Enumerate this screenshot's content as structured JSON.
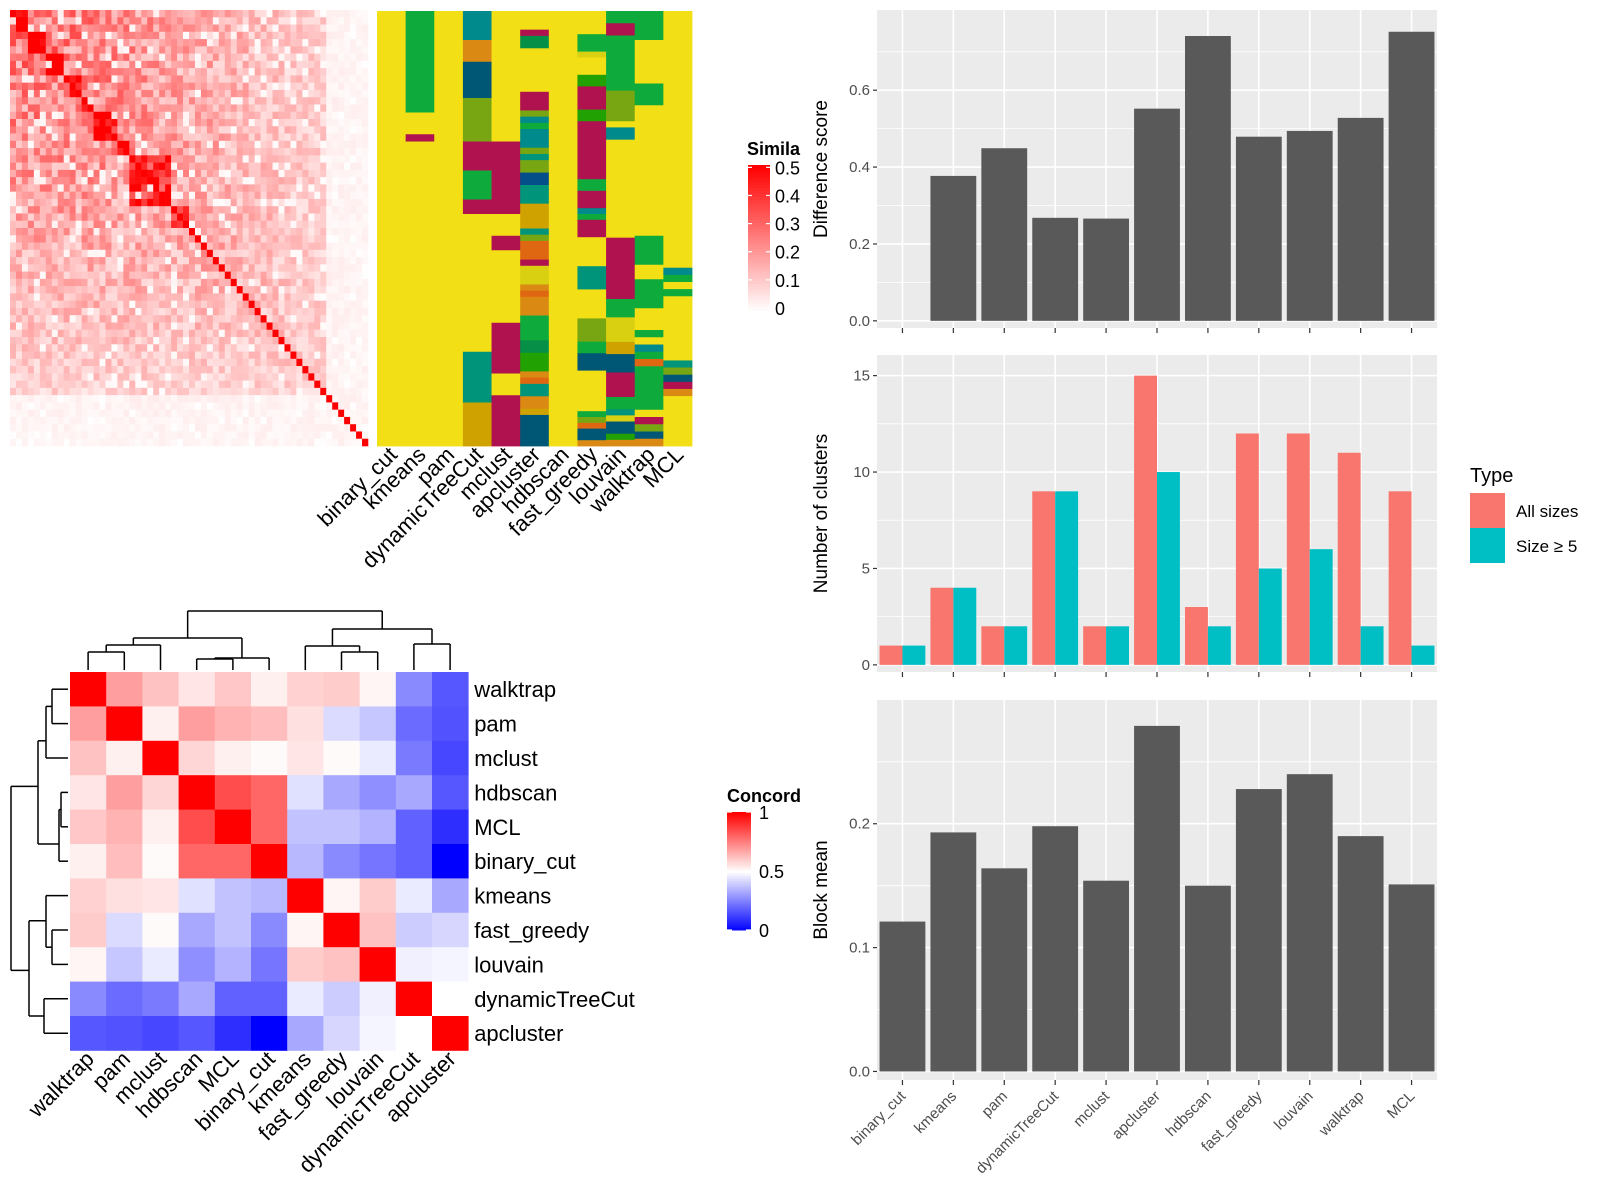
{
  "methods_order": [
    "binary_cut",
    "kmeans",
    "pam",
    "dynamicTreeCut",
    "mclust",
    "apcluster",
    "hdbscan",
    "fast_greedy",
    "louvain",
    "walktrap",
    "MCL"
  ],
  "chart_data": [
    {
      "id": "similarity-heatmap",
      "type": "heatmap",
      "title": "",
      "legend": {
        "title": "Similarity",
        "title_visible": "Simila",
        "ticks": [
          "0",
          "0.1",
          "0.2",
          "0.3",
          "0.4",
          "0.5"
        ],
        "range": [
          0,
          0.5
        ],
        "colors": [
          "#FFFFFF",
          "#FF0000"
        ]
      },
      "note": "Approximately 60x60 gene-set similarity matrix ordered by binary_cut clusters; strong diagonal blocks in upper-left",
      "size": 60,
      "blocks": [
        [
          0,
          3
        ],
        [
          3,
          6
        ],
        [
          6,
          9
        ],
        [
          9,
          12
        ],
        [
          12,
          14
        ],
        [
          14,
          18
        ],
        [
          18,
          20
        ],
        [
          20,
          27
        ],
        [
          27,
          30
        ],
        [
          30,
          36
        ],
        [
          36,
          40
        ],
        [
          40,
          60
        ]
      ]
    },
    {
      "id": "cluster-assignment-heatmap",
      "type": "heatmap",
      "columns": [
        "binary_cut",
        "kmeans",
        "pam",
        "dynamicTreeCut",
        "mclust",
        "apcluster",
        "hdbscan",
        "fast_greedy",
        "louvain",
        "walktrap",
        "MCL"
      ],
      "note": "Categorical cluster membership per gene set (rows) for each method (columns); yellow is the largest/background cluster",
      "palette": {
        "yellow": "#F2DF15",
        "green": "#0FAA3C",
        "crimson": "#B0124F",
        "teal": "#008A8C",
        "orange": "#DA8A13",
        "navy": "#005775",
        "olive": "#78A612",
        "seagreen": "#00957A",
        "gold": "#CFA200",
        "dkgreen": "#068F47",
        "lime": "#D8D010",
        "red_orange": "#E06712",
        "green2": "#22A102",
        "blue": "#044E8A"
      },
      "segments": [
        [
          [
            "yellow",
            60
          ]
        ],
        [
          [
            "green",
            14
          ],
          [
            "yellow",
            3
          ],
          [
            "crimson",
            1
          ],
          [
            "yellow",
            42
          ]
        ],
        [
          [
            "yellow",
            60
          ]
        ],
        [
          [
            "teal",
            4
          ],
          [
            "orange",
            3
          ],
          [
            "navy",
            5
          ],
          [
            "olive",
            6
          ],
          [
            "crimson",
            4
          ],
          [
            "green",
            4
          ],
          [
            "crimson",
            2
          ],
          [
            "yellow",
            19
          ],
          [
            "seagreen",
            7
          ],
          [
            "gold",
            6
          ]
        ],
        [
          [
            "yellow",
            18
          ],
          [
            "crimson",
            10
          ],
          [
            "yellow",
            3
          ],
          [
            "crimson",
            2
          ],
          [
            "yellow",
            10
          ],
          [
            "crimson",
            7
          ],
          [
            "yellow",
            3
          ],
          [
            "crimson",
            7
          ]
        ],
        [
          [
            "yellow",
            3
          ],
          [
            "crimson",
            1
          ],
          [
            "dkgreen",
            2
          ],
          [
            "yellow",
            7
          ],
          [
            "crimson",
            3
          ],
          [
            "olive",
            1
          ],
          [
            "teal",
            1
          ],
          [
            "green",
            1
          ],
          [
            "teal",
            3
          ],
          [
            "olive",
            1
          ],
          [
            "seagreen",
            1
          ],
          [
            "olive",
            2
          ],
          [
            "blue",
            2
          ],
          [
            "seagreen",
            3
          ],
          [
            "gold",
            4
          ],
          [
            "seagreen",
            1
          ],
          [
            "olive",
            1
          ],
          [
            "red_orange",
            3
          ],
          [
            "crimson",
            1
          ],
          [
            "lime",
            3
          ],
          [
            "orange",
            1
          ],
          [
            "red_orange",
            1
          ],
          [
            "orange",
            3
          ],
          [
            "green",
            4
          ],
          [
            "dkgreen",
            2
          ],
          [
            "green2",
            3
          ],
          [
            "orange",
            1
          ],
          [
            "red_orange",
            1
          ],
          [
            "seagreen",
            2
          ],
          [
            "orange",
            2
          ],
          [
            "gold",
            1
          ],
          [
            "navy",
            5
          ]
        ],
        [
          [
            "yellow",
            60
          ]
        ],
        [
          [
            "yellow",
            4
          ],
          [
            "green",
            3
          ],
          [
            "lime",
            1
          ],
          [
            "yellow",
            3
          ],
          [
            "green2",
            2
          ],
          [
            "crimson",
            4
          ],
          [
            "green2",
            2
          ],
          [
            "crimson",
            10
          ],
          [
            "green",
            2
          ],
          [
            "crimson",
            3
          ],
          [
            "teal",
            1
          ],
          [
            "green",
            1
          ],
          [
            "crimson",
            3
          ],
          [
            "yellow",
            5
          ],
          [
            "seagreen",
            4
          ],
          [
            "yellow",
            5
          ],
          [
            "olive",
            4
          ],
          [
            "green",
            2
          ],
          [
            "navy",
            3
          ],
          [
            "yellow",
            7
          ],
          [
            "green",
            1
          ],
          [
            "olive",
            1
          ],
          [
            "red_orange",
            1
          ],
          [
            "navy",
            2
          ],
          [
            "orange",
            1
          ]
        ],
        [
          [
            "green",
            2
          ],
          [
            "crimson",
            2
          ],
          [
            "green",
            9
          ],
          [
            "olive",
            5
          ],
          [
            "yellow",
            1
          ],
          [
            "teal",
            2
          ],
          [
            "yellow",
            16
          ],
          [
            "crimson",
            10
          ],
          [
            "green",
            3
          ],
          [
            "lime",
            4
          ],
          [
            "gold",
            2
          ],
          [
            "navy",
            3
          ],
          [
            "crimson",
            4
          ],
          [
            "green",
            2
          ],
          [
            "seagreen",
            1
          ],
          [
            "lime",
            1
          ],
          [
            "navy",
            2
          ],
          [
            "green2",
            1
          ],
          [
            "orange",
            1
          ]
        ],
        [
          [
            "green",
            4
          ],
          [
            "yellow",
            6
          ],
          [
            "green",
            3
          ],
          [
            "yellow",
            18
          ],
          [
            "green",
            4
          ],
          [
            "yellow",
            2
          ],
          [
            "green",
            4
          ],
          [
            "yellow",
            3
          ],
          [
            "green",
            1
          ],
          [
            "yellow",
            1
          ],
          [
            "teal",
            1
          ],
          [
            "green",
            1
          ],
          [
            "red_orange",
            1
          ],
          [
            "green",
            4
          ],
          [
            "green",
            2
          ],
          [
            "yellow",
            1
          ],
          [
            "crimson",
            1
          ],
          [
            "olive",
            1
          ],
          [
            "navy",
            1
          ],
          [
            "orange",
            1
          ]
        ],
        [
          [
            "yellow",
            36
          ],
          [
            "teal",
            1
          ],
          [
            "green",
            1
          ],
          [
            "yellow",
            1
          ],
          [
            "green",
            1
          ],
          [
            "yellow",
            9
          ],
          [
            "seagreen",
            1
          ],
          [
            "olive",
            1
          ],
          [
            "navy",
            1
          ],
          [
            "crimson",
            1
          ],
          [
            "orange",
            1
          ],
          [
            "yellow",
            7
          ]
        ]
      ]
    },
    {
      "id": "concordance-heatmap",
      "type": "heatmap",
      "rows": [
        "walktrap",
        "pam",
        "mclust",
        "hdbscan",
        "MCL",
        "binary_cut",
        "kmeans",
        "fast_greedy",
        "louvain",
        "dynamicTreeCut",
        "apcluster"
      ],
      "cols": [
        "walktrap",
        "pam",
        "mclust",
        "hdbscan",
        "MCL",
        "binary_cut",
        "kmeans",
        "fast_greedy",
        "louvain",
        "dynamicTreeCut",
        "apcluster"
      ],
      "values": [
        [
          1.0,
          0.69,
          0.62,
          0.55,
          0.61,
          0.53,
          0.59,
          0.6,
          0.52,
          0.27,
          0.17
        ],
        [
          0.69,
          1.0,
          0.53,
          0.69,
          0.65,
          0.63,
          0.56,
          0.43,
          0.39,
          0.21,
          0.16
        ],
        [
          0.62,
          0.53,
          1.0,
          0.58,
          0.53,
          0.51,
          0.55,
          0.51,
          0.46,
          0.24,
          0.14
        ],
        [
          0.55,
          0.69,
          0.58,
          1.0,
          0.85,
          0.8,
          0.44,
          0.33,
          0.28,
          0.33,
          0.17
        ],
        [
          0.61,
          0.65,
          0.53,
          0.85,
          1.0,
          0.8,
          0.38,
          0.38,
          0.35,
          0.19,
          0.09
        ],
        [
          0.53,
          0.63,
          0.51,
          0.8,
          0.8,
          1.0,
          0.36,
          0.27,
          0.23,
          0.19,
          0.0
        ],
        [
          0.59,
          0.56,
          0.55,
          0.44,
          0.38,
          0.36,
          1.0,
          0.52,
          0.6,
          0.46,
          0.33
        ],
        [
          0.6,
          0.43,
          0.51,
          0.33,
          0.38,
          0.27,
          0.52,
          1.0,
          0.62,
          0.4,
          0.42
        ],
        [
          0.52,
          0.39,
          0.46,
          0.28,
          0.35,
          0.23,
          0.6,
          0.62,
          1.0,
          0.47,
          0.48
        ],
        [
          0.27,
          0.21,
          0.24,
          0.33,
          0.19,
          0.19,
          0.46,
          0.4,
          0.47,
          1.0,
          0.5
        ],
        [
          0.17,
          0.16,
          0.14,
          0.17,
          0.09,
          0.0,
          0.33,
          0.42,
          0.48,
          0.5,
          1.0
        ]
      ],
      "legend": {
        "title": "Concordance",
        "title_visible": "Concord",
        "ticks": [
          "0",
          "0.5",
          "1"
        ],
        "range": [
          0,
          1
        ],
        "colors": [
          "#0000FF",
          "#FFFFFF",
          "#FF0000"
        ]
      },
      "dendrogram": {
        "merges_top_note": "((((walktrap,pam),mclust),((hdbscan,MCL),binary_cut)),((kmeans,(fast_greedy,louvain)),(dynamicTreeCut,apcluster)))"
      }
    },
    {
      "id": "difference-score-bar",
      "type": "bar",
      "categories": [
        "binary_cut",
        "kmeans",
        "pam",
        "dynamicTreeCut",
        "mclust",
        "apcluster",
        "hdbscan",
        "fast_greedy",
        "louvain",
        "walktrap",
        "MCL"
      ],
      "values": [
        0.0,
        0.377,
        0.449,
        0.268,
        0.266,
        0.552,
        0.741,
        0.479,
        0.494,
        0.528,
        0.752
      ],
      "title": "",
      "xlabel": "",
      "ylabel": "Difference score",
      "ylim": [
        0,
        0.79
      ],
      "yticks": [
        "0.0",
        "0.2",
        "0.4",
        "0.6"
      ],
      "ytick_values": [
        0,
        0.2,
        0.4,
        0.6
      ],
      "show_xlabels": false,
      "color": "#595959",
      "grid": true
    },
    {
      "id": "number-of-clusters-bar",
      "type": "bar",
      "categories": [
        "binary_cut",
        "kmeans",
        "pam",
        "dynamicTreeCut",
        "mclust",
        "apcluster",
        "hdbscan",
        "fast_greedy",
        "louvain",
        "walktrap",
        "MCL"
      ],
      "series": [
        {
          "name": "All sizes",
          "color": "#F8766D",
          "values": [
            1,
            4,
            2,
            9,
            2,
            15,
            3,
            12,
            12,
            11,
            9
          ]
        },
        {
          "name": "Size ≥ 5",
          "color": "#00BFC4",
          "values": [
            1,
            4,
            2,
            9,
            2,
            10,
            2,
            5,
            6,
            2,
            1
          ]
        }
      ],
      "title": "",
      "xlabel": "",
      "ylabel": "Number of clusters",
      "ylim": [
        0,
        15.7
      ],
      "yticks": [
        "0",
        "5",
        "10",
        "15"
      ],
      "ytick_values": [
        0,
        5,
        10,
        15
      ],
      "show_xlabels": false,
      "legend": {
        "title": "Type",
        "position": "right"
      },
      "grid": true
    },
    {
      "id": "block-mean-bar",
      "type": "bar",
      "categories": [
        "binary_cut",
        "kmeans",
        "pam",
        "dynamicTreeCut",
        "mclust",
        "apcluster",
        "hdbscan",
        "fast_greedy",
        "louvain",
        "walktrap",
        "MCL"
      ],
      "values": [
        0.121,
        0.193,
        0.164,
        0.198,
        0.154,
        0.279,
        0.15,
        0.228,
        0.24,
        0.19,
        0.151
      ],
      "title": "",
      "xlabel": "",
      "ylabel": "Block mean",
      "ylim": [
        0,
        0.293
      ],
      "yticks": [
        "0.0",
        "0.1",
        "0.2"
      ],
      "ytick_values": [
        0,
        0.1,
        0.2
      ],
      "show_xlabels": true,
      "color": "#595959",
      "grid": true
    }
  ]
}
